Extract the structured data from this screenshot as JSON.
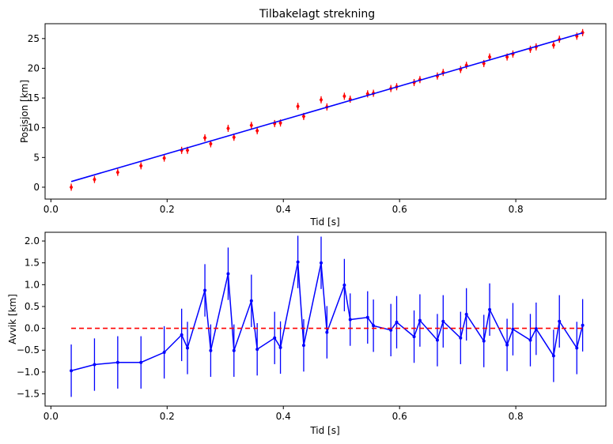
{
  "chart_data": [
    {
      "type": "scatter",
      "title": "Tilbakelagt strekning",
      "xlabel": "Tid [s]",
      "ylabel": "Posisjon [km]",
      "xlim": [
        -0.01,
        0.955
      ],
      "ylim": [
        -2.0,
        27.5
      ],
      "xticks": [
        0.0,
        0.2,
        0.4,
        0.6,
        0.8
      ],
      "yticks": [
        0,
        5,
        10,
        15,
        20,
        25
      ],
      "xticklabels": [
        "0.0",
        "0.2",
        "0.4",
        "0.6",
        "0.8"
      ],
      "yticklabels": [
        "0",
        "5",
        "10",
        "15",
        "20",
        "25"
      ],
      "series": [
        {
          "kind": "errorbar",
          "color": "#ff0000",
          "marker": "diamond",
          "x": [
            0.035,
            0.075,
            0.115,
            0.155,
            0.195,
            0.225,
            0.235,
            0.265,
            0.275,
            0.305,
            0.315,
            0.345,
            0.355,
            0.385,
            0.395,
            0.425,
            0.435,
            0.465,
            0.475,
            0.505,
            0.515,
            0.545,
            0.555,
            0.585,
            0.595,
            0.625,
            0.635,
            0.665,
            0.675,
            0.705,
            0.715,
            0.745,
            0.755,
            0.785,
            0.795,
            0.825,
            0.835,
            0.865,
            0.875,
            0.905,
            0.915
          ],
          "y": [
            0.0,
            1.3,
            2.5,
            3.6,
            4.9,
            6.2,
            6.2,
            8.3,
            7.3,
            9.9,
            8.4,
            10.4,
            9.5,
            10.7,
            10.8,
            13.6,
            11.9,
            14.7,
            13.5,
            15.3,
            14.8,
            15.7,
            15.8,
            16.6,
            16.9,
            17.6,
            18.1,
            18.7,
            19.3,
            19.8,
            20.5,
            20.8,
            21.9,
            21.9,
            22.4,
            23.2,
            23.6,
            23.9,
            24.9,
            25.4,
            26.0
          ],
          "yerr": 0.6
        },
        {
          "kind": "line",
          "color": "#0000ff",
          "x": [
            0.035,
            0.915
          ],
          "y": [
            0.95,
            25.95
          ]
        }
      ]
    },
    {
      "type": "line",
      "xlabel": "Tid [s]",
      "ylabel": "Avvik [km]",
      "xlim": [
        -0.01,
        0.955
      ],
      "ylim": [
        -1.78,
        2.2
      ],
      "xticks": [
        0.0,
        0.2,
        0.4,
        0.6,
        0.8
      ],
      "yticks": [
        -1.5,
        -1.0,
        -0.5,
        0.0,
        0.5,
        1.0,
        1.5,
        2.0
      ],
      "xticklabels": [
        "0.0",
        "0.2",
        "0.4",
        "0.6",
        "0.8"
      ],
      "yticklabels": [
        "−1.5",
        "−1.0",
        "−0.5",
        "0.0",
        "0.5",
        "1.0",
        "1.5",
        "2.0"
      ],
      "series": [
        {
          "kind": "errorbar-line",
          "color": "#0000ff",
          "marker": "dot",
          "x": [
            0.035,
            0.075,
            0.115,
            0.155,
            0.195,
            0.225,
            0.235,
            0.265,
            0.275,
            0.305,
            0.315,
            0.345,
            0.355,
            0.385,
            0.395,
            0.425,
            0.435,
            0.465,
            0.475,
            0.505,
            0.515,
            0.545,
            0.555,
            0.585,
            0.595,
            0.625,
            0.635,
            0.665,
            0.675,
            0.705,
            0.715,
            0.745,
            0.755,
            0.785,
            0.795,
            0.825,
            0.835,
            0.865,
            0.875,
            0.905,
            0.915
          ],
          "y": [
            -0.97,
            -0.83,
            -0.78,
            -0.78,
            -0.55,
            -0.15,
            -0.45,
            0.87,
            -0.51,
            1.25,
            -0.51,
            0.63,
            -0.48,
            -0.22,
            -0.44,
            1.52,
            -0.39,
            1.5,
            -0.09,
            0.99,
            0.2,
            0.25,
            0.06,
            -0.04,
            0.14,
            -0.19,
            0.18,
            -0.27,
            0.16,
            -0.22,
            0.32,
            -0.29,
            0.43,
            -0.38,
            -0.02,
            -0.27,
            -0.01,
            -0.63,
            0.16,
            -0.45,
            0.07
          ],
          "yerr": 0.6
        },
        {
          "kind": "dashed",
          "color": "#ff0000",
          "x": [
            0.035,
            0.915
          ],
          "y": [
            0.0,
            0.0
          ]
        }
      ]
    }
  ]
}
